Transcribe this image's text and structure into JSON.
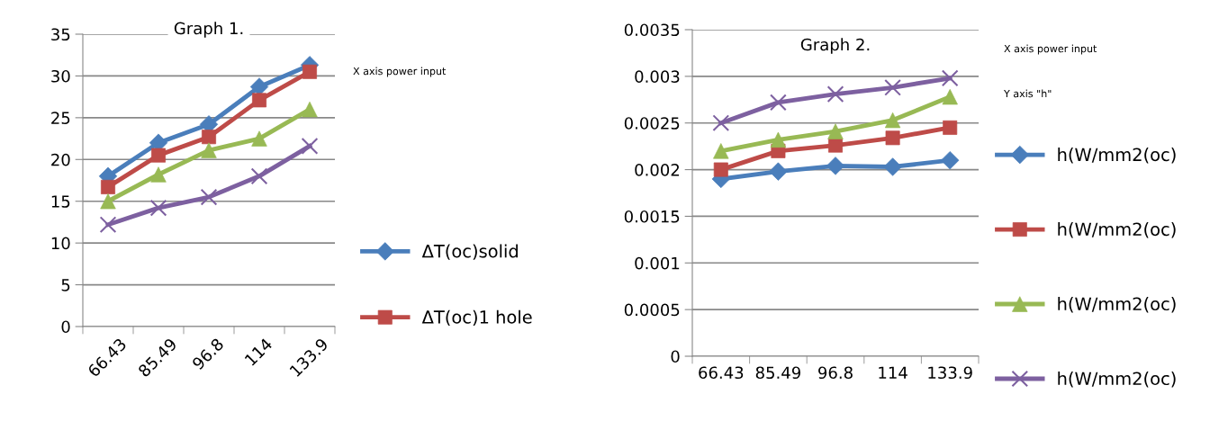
{
  "chart_data": [
    {
      "type": "line",
      "title": "Graph 1.",
      "categories": [
        "66.43",
        "85.49",
        "96.8",
        "114",
        "133.9"
      ],
      "ylim": [
        0,
        35
      ],
      "yticks": [
        0,
        5,
        10,
        15,
        20,
        25,
        30,
        35
      ],
      "grid": "y",
      "legend": "right",
      "line_style": "solid",
      "annotations": [
        "X axis power input"
      ],
      "series": [
        {
          "name": "ΔT(oc)solid",
          "color": "#4a7ebb",
          "marker": "diamond",
          "values": [
            18,
            22,
            24.2,
            28.7,
            31.3
          ]
        },
        {
          "name": "ΔT(oc)1 hole",
          "color": "#be4b48",
          "marker": "square",
          "values": [
            16.7,
            20.5,
            22.7,
            27.1,
            30.5
          ]
        },
        {
          "color": "#98b954",
          "marker": "triangle",
          "values": [
            15,
            18.2,
            21.1,
            22.5,
            26
          ]
        },
        {
          "color": "#7d60a0",
          "marker": "cross",
          "values": [
            12.2,
            14.2,
            15.5,
            18,
            21.6
          ]
        }
      ]
    },
    {
      "type": "line",
      "title": "Graph 2.",
      "categories": [
        "66.43",
        "85.49",
        "96.8",
        "114",
        "133.9"
      ],
      "ylim": [
        0,
        0.0035
      ],
      "yticks": [
        0,
        0.0005,
        0.001,
        0.0015,
        0.002,
        0.0025,
        0.003,
        0.0035
      ],
      "grid": "y",
      "legend": "right",
      "line_style": "solid",
      "annotations": [
        "X axis power input",
        "Y axis \"h\""
      ],
      "series": [
        {
          "name": "h(W/mm2(oc)",
          "color": "#4a7ebb",
          "marker": "diamond",
          "values": [
            0.0019,
            0.00198,
            0.00204,
            0.00203,
            0.0021
          ]
        },
        {
          "name": "h(W/mm2(oc)",
          "color": "#be4b48",
          "marker": "square",
          "values": [
            0.002,
            0.0022,
            0.00226,
            0.00234,
            0.00245
          ]
        },
        {
          "name": "h(W/mm2(oc)",
          "color": "#98b954",
          "marker": "triangle",
          "values": [
            0.0022,
            0.00232,
            0.00241,
            0.00253,
            0.00278
          ]
        },
        {
          "name": "h(W/mm2(oc)",
          "color": "#7d60a0",
          "marker": "cross",
          "values": [
            0.0025,
            0.00272,
            0.00281,
            0.00288,
            0.00298
          ]
        }
      ]
    }
  ]
}
